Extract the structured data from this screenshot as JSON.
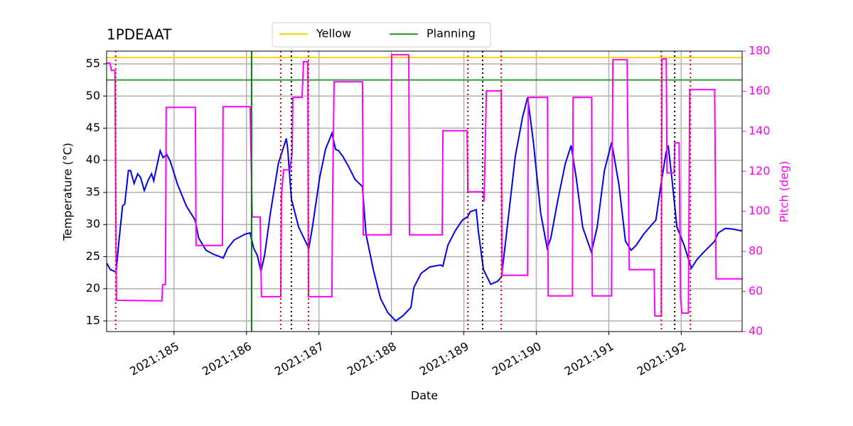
{
  "chart_data": {
    "type": "line",
    "title": "1PDEAAT",
    "xlabel": "Date",
    "ylabel": "Temperature (°C)",
    "y2label": "Pitch (deg)",
    "xlim": [
      184.07,
      192.84
    ],
    "xticks": [
      {
        "value": 185,
        "label": "2021:185"
      },
      {
        "value": 186,
        "label": "2021:186"
      },
      {
        "value": 187,
        "label": "2021:187"
      },
      {
        "value": 188,
        "label": "2021:188"
      },
      {
        "value": 189,
        "label": "2021:189"
      },
      {
        "value": 190,
        "label": "2021:190"
      },
      {
        "value": 191,
        "label": "2021:191"
      },
      {
        "value": 192,
        "label": "2021:192"
      }
    ],
    "ylim": [
      13.34,
      56.99
    ],
    "yticks": [
      15,
      20,
      25,
      30,
      35,
      40,
      45,
      50,
      55
    ],
    "y2lim": [
      40,
      180
    ],
    "y2ticks": [
      40,
      60,
      80,
      100,
      120,
      140,
      160,
      180
    ],
    "y2color": "#ff00ff",
    "grid": true,
    "hlines": [
      {
        "name": "Yellow",
        "value": 56,
        "color": "#ffd700"
      },
      {
        "name": "Planning",
        "value": 52.5,
        "color": "#2ca02c"
      }
    ],
    "vlines": [
      {
        "x": 186.07,
        "color": "#008000",
        "style": "solid"
      },
      {
        "x": 184.195,
        "color": "#e00000",
        "style": "dotted"
      },
      {
        "x": 186.473,
        "color": "#e00000",
        "style": "dotted"
      },
      {
        "x": 186.855,
        "color": "#e00000",
        "style": "dotted"
      },
      {
        "x": 189.055,
        "color": "#e00000",
        "style": "dotted"
      },
      {
        "x": 189.516,
        "color": "#e00000",
        "style": "dotted"
      },
      {
        "x": 191.725,
        "color": "#e00000",
        "style": "dotted"
      },
      {
        "x": 192.127,
        "color": "#e00000",
        "style": "dotted"
      },
      {
        "x": 186.62,
        "color": "#000000",
        "style": "dotted"
      },
      {
        "x": 189.26,
        "color": "#000000",
        "style": "dotted"
      },
      {
        "x": 191.91,
        "color": "#000000",
        "style": "dotted"
      }
    ],
    "series": [
      {
        "color": "#0000ee",
        "x": [
          184.07,
          184.12,
          184.2,
          184.24,
          184.29,
          184.32,
          184.37,
          184.4,
          184.45,
          184.5,
          184.54,
          184.59,
          184.64,
          184.69,
          184.72,
          184.75,
          184.81,
          184.85,
          184.9,
          184.95,
          185.05,
          185.17,
          185.29,
          185.34,
          185.44,
          185.54,
          185.68,
          185.74,
          185.83,
          185.98,
          186.05,
          186.1,
          186.15,
          186.2,
          186.25,
          186.33,
          186.44,
          186.55,
          186.57,
          186.62,
          186.72,
          186.86,
          186.91,
          187.01,
          187.09,
          187.18,
          187.23,
          187.27,
          187.33,
          187.41,
          187.5,
          187.6,
          187.65,
          187.75,
          187.85,
          187.95,
          188.06,
          188.16,
          188.27,
          188.31,
          188.41,
          188.53,
          188.68,
          188.71,
          188.78,
          188.88,
          188.98,
          189.05,
          189.09,
          189.17,
          189.2,
          189.27,
          189.37,
          189.47,
          189.52,
          189.61,
          189.71,
          189.81,
          189.88,
          189.96,
          190.06,
          190.15,
          190.2,
          190.3,
          190.4,
          190.48,
          190.55,
          190.64,
          190.76,
          190.84,
          190.94,
          191.04,
          191.14,
          191.23,
          191.31,
          191.38,
          191.48,
          191.58,
          191.65,
          191.72,
          191.79,
          191.82,
          191.87,
          191.94,
          192.04,
          192.14,
          192.22,
          192.31,
          192.46,
          192.51,
          192.61,
          192.71,
          192.84
        ],
        "values": [
          24.0,
          23.0,
          22.6,
          27.4,
          32.9,
          33.2,
          38.4,
          38.4,
          36.4,
          37.9,
          37.3,
          35.3,
          36.8,
          37.9,
          36.8,
          38.4,
          41.5,
          40.4,
          40.9,
          39.8,
          36.2,
          32.9,
          30.7,
          27.9,
          26.0,
          25.4,
          24.8,
          26.3,
          27.6,
          28.5,
          28.7,
          26.3,
          25.2,
          22.7,
          25.2,
          31.8,
          39.5,
          43.4,
          41.7,
          34.0,
          29.6,
          26.3,
          29.6,
          37.3,
          41.7,
          44.2,
          41.7,
          41.5,
          40.6,
          39.0,
          37.0,
          35.9,
          28.5,
          23.0,
          18.5,
          16.3,
          15.0,
          15.8,
          17.1,
          20.2,
          22.4,
          23.4,
          23.7,
          23.5,
          26.8,
          29.0,
          30.7,
          31.2,
          32.0,
          32.3,
          29.0,
          23.0,
          20.7,
          21.2,
          21.9,
          30.7,
          40.6,
          46.7,
          49.8,
          42.8,
          31.8,
          26.3,
          27.9,
          34.0,
          39.5,
          42.3,
          37.3,
          29.6,
          25.7,
          29.6,
          38.4,
          42.8,
          36.2,
          27.4,
          26.0,
          26.8,
          28.5,
          29.8,
          30.7,
          36.2,
          41.2,
          42.3,
          37.3,
          29.6,
          26.8,
          23.2,
          24.6,
          25.7,
          27.4,
          28.7,
          29.4,
          29.3,
          29.0
        ]
      },
      {
        "color": "#ff00ff",
        "axis": "y2",
        "x": [
          184.067,
          184.116,
          184.136,
          184.185,
          184.205,
          184.833,
          184.843,
          184.882,
          184.892,
          185.295,
          185.304,
          185.668,
          185.677,
          186.05,
          186.08,
          186.188,
          186.207,
          186.473,
          186.482,
          186.512,
          186.6,
          186.63,
          186.639,
          186.767,
          186.787,
          186.846,
          186.855,
          187.179,
          187.189,
          187.209,
          187.601,
          187.611,
          187.994,
          188.004,
          188.24,
          188.249,
          188.701,
          188.711,
          189.045,
          189.054,
          189.27,
          189.28,
          189.31,
          189.516,
          189.526,
          189.879,
          189.889,
          190.154,
          190.164,
          190.498,
          190.507,
          190.763,
          190.772,
          191.037,
          191.057,
          191.253,
          191.283,
          191.626,
          191.636,
          191.724,
          191.734,
          191.793,
          191.803,
          191.901,
          191.911,
          191.97,
          191.99,
          192.009,
          192.098,
          192.117,
          192.461,
          192.481,
          192.844
        ],
        "values": [
          174,
          174,
          170.4,
          170.4,
          55.6,
          55.3,
          63.5,
          63.5,
          151.9,
          151.9,
          83,
          83,
          152.3,
          152.3,
          97.2,
          97.2,
          57.4,
          57.4,
          107.9,
          120.7,
          120.7,
          129.6,
          156.9,
          156.9,
          174.7,
          174.7,
          57.4,
          57.4,
          107.2,
          164.7,
          164.7,
          88.3,
          88.3,
          178.2,
          178.2,
          88.3,
          88.3,
          140.2,
          140.2,
          109.7,
          109.7,
          105,
          160.1,
          160.1,
          68.1,
          68.1,
          156.9,
          156.9,
          57.8,
          57.8,
          156.9,
          156.9,
          57.8,
          57.8,
          175.7,
          175.7,
          70.9,
          70.9,
          47.8,
          47.8,
          176.1,
          176.1,
          119.2,
          119.2,
          134.2,
          134.2,
          56.7,
          49.2,
          49.2,
          160.8,
          160.8,
          66.3,
          66.3
        ]
      }
    ]
  }
}
